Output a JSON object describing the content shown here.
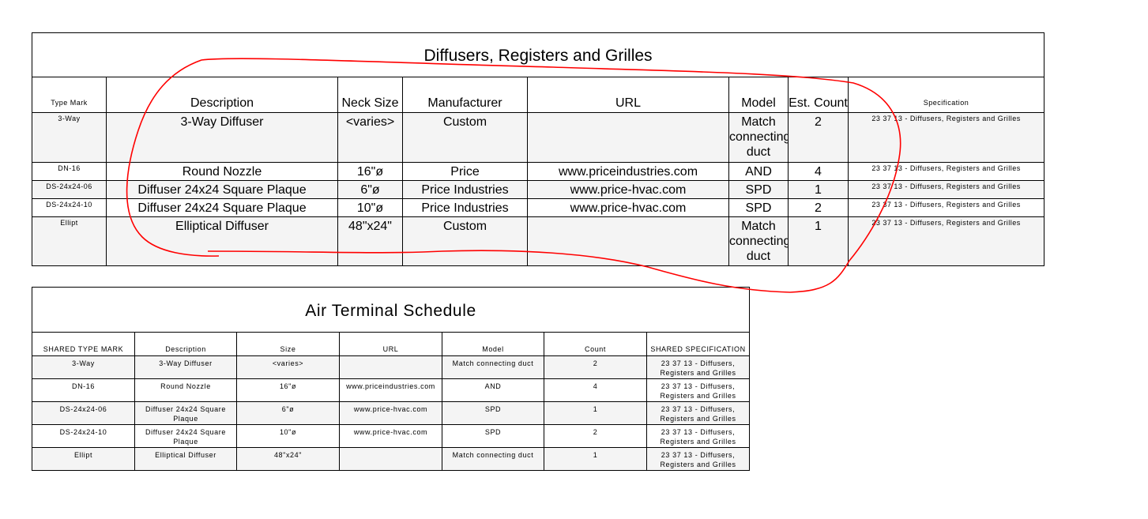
{
  "schedule1": {
    "title": "Diffusers, Registers and Grilles",
    "headers": [
      "Type Mark",
      "Description",
      "Neck Size",
      "Manufacturer",
      "URL",
      "Model",
      "Est. Count",
      "Specification"
    ],
    "rows": [
      [
        "3-Way",
        "3-Way Diffuser",
        "<varies>",
        "Custom",
        "",
        "Match connecting duct",
        "2",
        "23 37 13 - Diffusers, Registers and Grilles"
      ],
      [
        "DN-16",
        "Round Nozzle",
        "16\"ø",
        "Price",
        "www.priceindustries.com",
        "AND",
        "4",
        "23 37 13 - Diffusers, Registers and Grilles"
      ],
      [
        "DS-24x24-06",
        "Diffuser 24x24 Square Plaque",
        "6\"ø",
        "Price Industries",
        "www.price-hvac.com",
        "SPD",
        "1",
        "23 37 13 - Diffusers, Registers and Grilles"
      ],
      [
        "DS-24x24-10",
        "Diffuser 24x24 Square Plaque",
        "10\"ø",
        "Price Industries",
        "www.price-hvac.com",
        "SPD",
        "2",
        "23 37 13 - Diffusers, Registers and Grilles"
      ],
      [
        "Ellipt",
        "Elliptical Diffuser",
        "48\"x24\"",
        "Custom",
        "",
        "Match connecting duct",
        "1",
        "23 37 13 - Diffusers, Registers and Grilles"
      ]
    ]
  },
  "schedule2": {
    "title": "Air Terminal Schedule",
    "headers": [
      "SHARED TYPE MARK",
      "Description",
      "Size",
      "URL",
      "Model",
      "Count",
      "SHARED SPECIFICATION"
    ],
    "rows": [
      [
        "3-Way",
        "3-Way Diffuser",
        "<varies>",
        "",
        "Match connecting duct",
        "2",
        "23 37 13 - Diffusers, Registers and Grilles"
      ],
      [
        "DN-16",
        "Round Nozzle",
        "16\"ø",
        "www.priceindustries.com",
        "AND",
        "4",
        "23 37 13 - Diffusers, Registers and Grilles"
      ],
      [
        "DS-24x24-06",
        "Diffuser 24x24 Square Plaque",
        "6\"ø",
        "www.price-hvac.com",
        "SPD",
        "1",
        "23 37 13 - Diffusers, Registers and Grilles"
      ],
      [
        "DS-24x24-10",
        "Diffuser 24x24 Square Plaque",
        "10\"ø",
        "www.price-hvac.com",
        "SPD",
        "2",
        "23 37 13 - Diffusers, Registers and Grilles"
      ],
      [
        "Ellipt",
        "Elliptical Diffuser",
        "48\"x24\"",
        "",
        "Match connecting duct",
        "1",
        "23 37 13 - Diffusers, Registers and Grilles"
      ]
    ]
  },
  "colors": {
    "annotation": "#ff0000",
    "alt_row": "#f4f4f4"
  }
}
